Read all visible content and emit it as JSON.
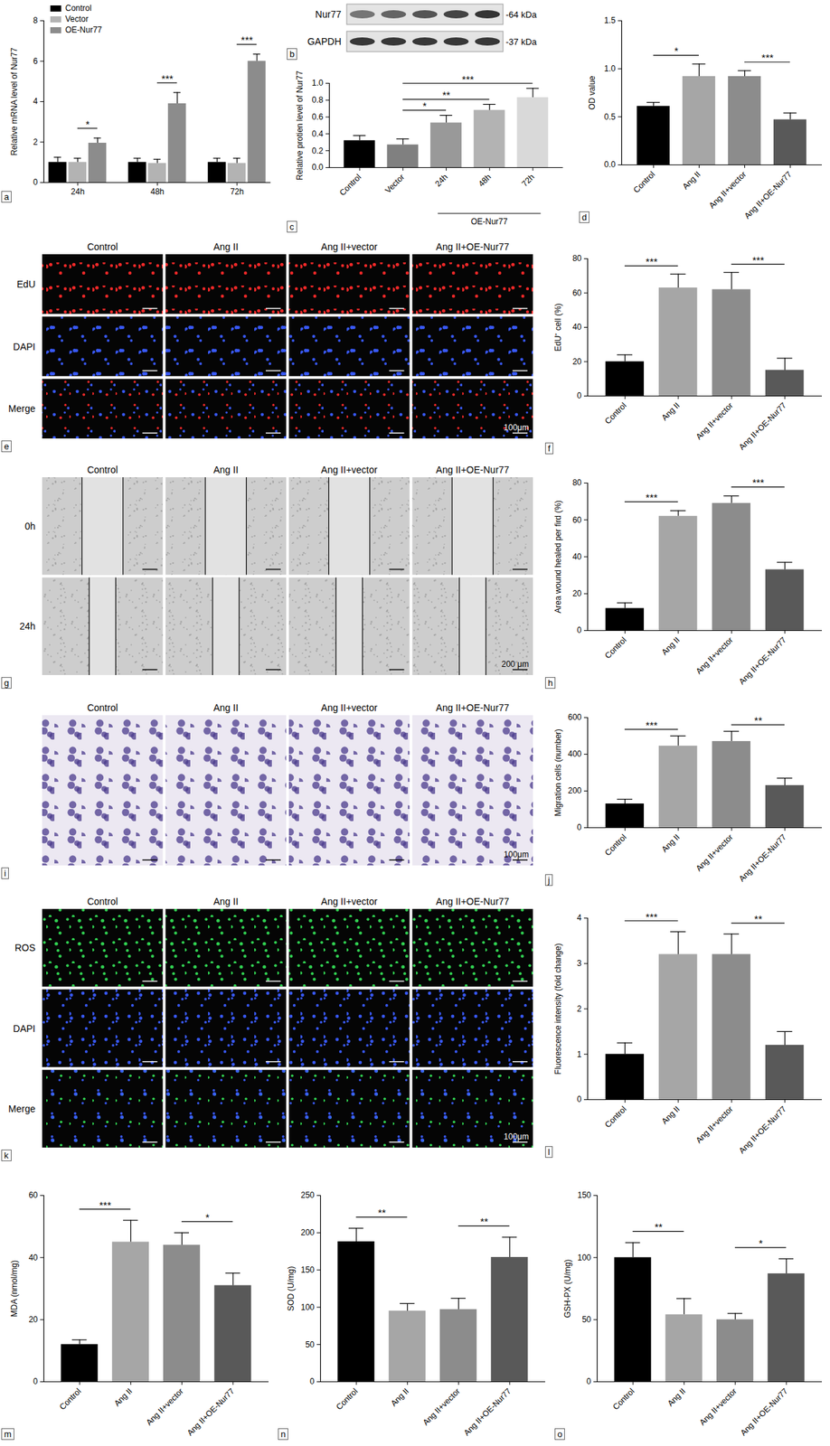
{
  "chart_data": [
    {
      "type": "bar",
      "panel": "a",
      "ylabel": "Relative mRNA level of Nur77",
      "categories": [
        "24h",
        "48h",
        "72h"
      ],
      "series": [
        {
          "name": "Control",
          "color": "#000000",
          "values": [
            1.0,
            1.0,
            1.0
          ],
          "errors": [
            0.25,
            0.2,
            0.2
          ]
        },
        {
          "name": "Vector",
          "color": "#b3b3b3",
          "values": [
            1.0,
            0.95,
            0.95
          ],
          "errors": [
            0.2,
            0.2,
            0.25
          ]
        },
        {
          "name": "OE-Nur77",
          "color": "#8c8c8c",
          "values": [
            1.95,
            3.9,
            6.0
          ],
          "errors": [
            0.25,
            0.55,
            0.35
          ]
        }
      ],
      "ylim": [
        0,
        8
      ],
      "yticks": [
        0,
        2,
        4,
        6,
        8
      ],
      "legend": "upper left",
      "significance": [
        {
          "category": "24h",
          "from": "Vector",
          "to": "OE-Nur77",
          "label": "*"
        },
        {
          "category": "48h",
          "from": "Vector",
          "to": "OE-Nur77",
          "label": "***"
        },
        {
          "category": "72h",
          "from": "Vector",
          "to": "OE-Nur77",
          "label": "***"
        }
      ]
    },
    {
      "type": "blot",
      "panel": "b",
      "rows": [
        {
          "label": "Nur77",
          "size": "-64 kDa"
        },
        {
          "label": "GAPDH",
          "size": "-37 kDa"
        }
      ],
      "lanes": 5
    },
    {
      "type": "bar",
      "panel": "c",
      "ylabel": "Relative protien level of Nur77",
      "categories": [
        "Control",
        "Vector",
        "24h",
        "48h",
        "72h"
      ],
      "values": [
        0.32,
        0.27,
        0.53,
        0.68,
        0.83
      ],
      "errors": [
        0.06,
        0.07,
        0.09,
        0.07,
        0.11
      ],
      "colors": [
        "#000000",
        "#808080",
        "#999999",
        "#b3b3b3",
        "#d9d9d9"
      ],
      "ylim": [
        0,
        1.0
      ],
      "yticks": [
        {
          "value": 0,
          "label": "0.0"
        },
        0.2,
        0.4,
        0.6,
        0.8,
        {
          "value": 1.0,
          "label": "1.0"
        }
      ],
      "group": {
        "label": "OE-Nur77",
        "categories": [
          "24h",
          "48h",
          "72h"
        ]
      },
      "significance": [
        {
          "from": "Vector",
          "to": "24h",
          "label": "*"
        },
        {
          "from": "Vector",
          "to": "48h",
          "label": "**"
        },
        {
          "from": "Vector",
          "to": "72h",
          "label": "***"
        }
      ]
    },
    {
      "type": "bar",
      "panel": "d",
      "ylabel": "OD value",
      "categories": [
        "Control",
        "Ang II",
        "Ang II+vector",
        "Ang II+OE-Nur77"
      ],
      "values": [
        0.61,
        0.92,
        0.92,
        0.47
      ],
      "errors": [
        0.04,
        0.13,
        0.06,
        0.07
      ],
      "colors": [
        "#000000",
        "#a6a6a6",
        "#8c8c8c",
        "#595959"
      ],
      "ylim": [
        0,
        1.5
      ],
      "yticks": [
        {
          "value": 0,
          "label": "0.0"
        },
        0.5,
        {
          "value": 1.0,
          "label": "1.0"
        },
        1.5
      ],
      "significance": [
        {
          "from": "Control",
          "to": "Ang II",
          "label": "*"
        },
        {
          "from": "Ang II+vector",
          "to": "Ang II+OE-Nur77",
          "label": "***"
        }
      ]
    },
    {
      "type": "fluorescence",
      "panel": "e",
      "columns": [
        "Control",
        "Ang II",
        "Ang II+vector",
        "Ang II+OE-Nur77"
      ],
      "rows": [
        {
          "label": "EdU",
          "color": "#ff2a2a"
        },
        {
          "label": "DAPI",
          "color": "#3a5cff"
        },
        {
          "label": "Merge",
          "colors": [
            "#ff2a2a",
            "#3a5cff"
          ]
        }
      ],
      "scale_bar": "100μm"
    },
    {
      "type": "bar",
      "panel": "f",
      "ylabel": "EdU⁺ cell (%)",
      "categories": [
        "Control",
        "Ang II",
        "Ang II+vector",
        "Ang II+OE-Nur77"
      ],
      "values": [
        20,
        63,
        62,
        15
      ],
      "errors": [
        4,
        8,
        10,
        7
      ],
      "colors": [
        "#000000",
        "#a6a6a6",
        "#8c8c8c",
        "#595959"
      ],
      "ylim": [
        0,
        80
      ],
      "yticks": [
        0,
        20,
        40,
        60,
        80
      ],
      "significance": [
        {
          "from": "Control",
          "to": "Ang II",
          "label": "***"
        },
        {
          "from": "Ang II+vector",
          "to": "Ang II+OE-Nur77",
          "label": "***"
        }
      ]
    },
    {
      "type": "scratch",
      "panel": "g",
      "columns": [
        "Control",
        "Ang II",
        "Ang II+vector",
        "Ang II+OE-Nur77"
      ],
      "rows": [
        {
          "label": "0h",
          "color": "#9a9a9a"
        },
        {
          "label": "24h",
          "color": "#9a9a9a"
        }
      ],
      "scale_bar": "200 μm"
    },
    {
      "type": "bar",
      "panel": "h",
      "ylabel": "Area wound healed per fird (%)",
      "categories": [
        "Control",
        "Ang II",
        "Ang II+vector",
        "Ang II+OE-Nur77"
      ],
      "values": [
        12,
        62,
        69,
        33
      ],
      "errors": [
        3,
        3,
        4,
        4
      ],
      "colors": [
        "#000000",
        "#a6a6a6",
        "#8c8c8c",
        "#595959"
      ],
      "ylim": [
        0,
        80
      ],
      "yticks": [
        0,
        20,
        40,
        60,
        80
      ],
      "significance": [
        {
          "from": "Control",
          "to": "Ang II",
          "label": "***"
        },
        {
          "from": "Ang II+vector",
          "to": "Ang II+OE-Nur77",
          "label": "***"
        }
      ]
    },
    {
      "type": "brightfield",
      "panel": "i",
      "columns": [
        "Control",
        "Ang II",
        "Ang II+vector",
        "Ang II+OE-Nur77"
      ],
      "rows": [
        {
          "color": "#4b3a8c"
        }
      ],
      "scale_bar": "100μm"
    },
    {
      "type": "bar",
      "panel": "j",
      "ylabel": "Migration cells (number)",
      "categories": [
        "Control",
        "Ang II",
        "Ang II+vector",
        "Ang II+OE-Nur77"
      ],
      "values": [
        130,
        445,
        470,
        230
      ],
      "errors": [
        25,
        55,
        55,
        40
      ],
      "colors": [
        "#000000",
        "#a6a6a6",
        "#8c8c8c",
        "#595959"
      ],
      "ylim": [
        0,
        600
      ],
      "yticks": [
        0,
        200,
        400,
        600
      ],
      "significance": [
        {
          "from": "Control",
          "to": "Ang II",
          "label": "***"
        },
        {
          "from": "Ang II+vector",
          "to": "Ang II+OE-Nur77",
          "label": "**"
        }
      ]
    },
    {
      "type": "fluorescence",
      "panel": "k",
      "columns": [
        "Control",
        "Ang II",
        "Ang II+vector",
        "Ang II+OE-Nur77"
      ],
      "rows": [
        {
          "label": "ROS",
          "color": "#33dd55"
        },
        {
          "label": "DAPI",
          "color": "#3a5cff"
        },
        {
          "label": "Merge",
          "colors": [
            "#33dd55",
            "#3a5cff"
          ]
        }
      ],
      "scale_bar": "100μm"
    },
    {
      "type": "bar",
      "panel": "l",
      "ylabel": "Fluorescence intensity (fold change)",
      "categories": [
        "Control",
        "Ang II",
        "Ang II+vector",
        "Ang II+OE-Nur77"
      ],
      "values": [
        1.0,
        3.2,
        3.2,
        1.2
      ],
      "errors": [
        0.25,
        0.5,
        0.45,
        0.3
      ],
      "colors": [
        "#000000",
        "#a6a6a6",
        "#8c8c8c",
        "#595959"
      ],
      "ylim": [
        0,
        4
      ],
      "yticks": [
        0,
        1,
        2,
        3,
        4
      ],
      "significance": [
        {
          "from": "Control",
          "to": "Ang II",
          "label": "***"
        },
        {
          "from": "Ang II+vector",
          "to": "Ang II+OE-Nur77",
          "label": "**"
        }
      ]
    },
    {
      "type": "bar",
      "panel": "m",
      "ylabel": "MDA (nmol/mg)",
      "categories": [
        "Control",
        "Ang II",
        "Ang II+vector",
        "Ang II+OE-Nur77"
      ],
      "values": [
        12,
        45,
        44,
        31
      ],
      "errors": [
        1.5,
        7,
        4,
        4
      ],
      "colors": [
        "#000000",
        "#a6a6a6",
        "#8c8c8c",
        "#595959"
      ],
      "ylim": [
        0,
        60
      ],
      "yticks": [
        0,
        20,
        40,
        60
      ],
      "significance": [
        {
          "from": "Control",
          "to": "Ang II",
          "label": "***"
        },
        {
          "from": "Ang II+vector",
          "to": "Ang II+OE-Nur77",
          "label": "*"
        }
      ]
    },
    {
      "type": "bar",
      "panel": "n",
      "ylabel": "SOD (U/mg)",
      "categories": [
        "Control",
        "Ang II",
        "Ang II+vector",
        "Ang II+OE-Nur77"
      ],
      "values": [
        188,
        95,
        97,
        167
      ],
      "errors": [
        18,
        10,
        15,
        27
      ],
      "colors": [
        "#000000",
        "#a6a6a6",
        "#8c8c8c",
        "#595959"
      ],
      "ylim": [
        0,
        250
      ],
      "yticks": [
        0,
        50,
        100,
        150,
        200,
        250
      ],
      "significance": [
        {
          "from": "Control",
          "to": "Ang II",
          "label": "**"
        },
        {
          "from": "Ang II+vector",
          "to": "Ang II+OE-Nur77",
          "label": "**"
        }
      ]
    },
    {
      "type": "bar",
      "panel": "o",
      "ylabel": "GSH-PX (U/mg)",
      "categories": [
        "Control",
        "Ang II",
        "Ang II+vector",
        "Ang II+OE-Nur77"
      ],
      "values": [
        100,
        54,
        50,
        87
      ],
      "errors": [
        12,
        13,
        5,
        12
      ],
      "colors": [
        "#000000",
        "#a6a6a6",
        "#8c8c8c",
        "#595959"
      ],
      "ylim": [
        0,
        150
      ],
      "yticks": [
        0,
        50,
        100,
        150
      ],
      "significance": [
        {
          "from": "Control",
          "to": "Ang II",
          "label": "**"
        },
        {
          "from": "Ang II+vector",
          "to": "Ang II+OE-Nur77",
          "label": "*"
        }
      ]
    }
  ]
}
